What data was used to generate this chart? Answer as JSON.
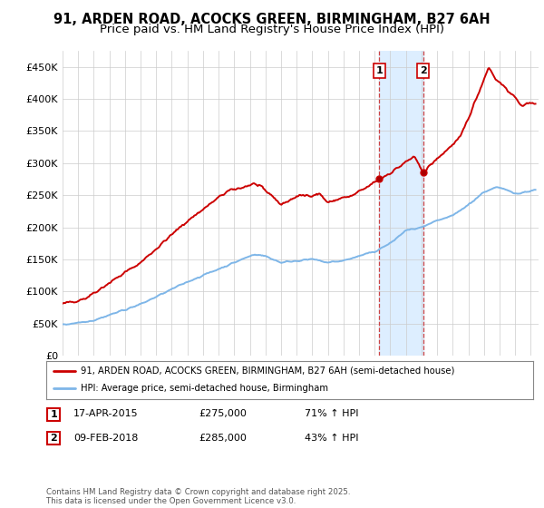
{
  "title_line1": "91, ARDEN ROAD, ACOCKS GREEN, BIRMINGHAM, B27 6AH",
  "title_line2": "Price paid vs. HM Land Registry's House Price Index (HPI)",
  "title_fontsize": 10.5,
  "subtitle_fontsize": 9.5,
  "ylabel_ticks": [
    "£0",
    "£50K",
    "£100K",
    "£150K",
    "£200K",
    "£250K",
    "£300K",
    "£350K",
    "£400K",
    "£450K"
  ],
  "ytick_values": [
    0,
    50000,
    100000,
    150000,
    200000,
    250000,
    300000,
    350000,
    400000,
    450000
  ],
  "ylim": [
    0,
    475000
  ],
  "xlim_start": 1995.0,
  "xlim_end": 2025.5,
  "transaction1_date": 2015.29,
  "transaction1_price": 275000,
  "transaction2_date": 2018.1,
  "transaction2_price": 285000,
  "hpi_color": "#7eb6e8",
  "sold_color": "#cc0000",
  "highlight_color": "#ddeeff",
  "legend_sold": "91, ARDEN ROAD, ACOCKS GREEN, BIRMINGHAM, B27 6AH (semi-detached house)",
  "legend_hpi": "HPI: Average price, semi-detached house, Birmingham",
  "table_row1": [
    "1",
    "17-APR-2015",
    "£275,000",
    "71% ↑ HPI"
  ],
  "table_row2": [
    "2",
    "09-FEB-2018",
    "£285,000",
    "43% ↑ HPI"
  ],
  "footnote": "Contains HM Land Registry data © Crown copyright and database right 2025.\nThis data is licensed under the Open Government Licence v3.0.",
  "bg_color": "#ffffff",
  "grid_color": "#cccccc"
}
